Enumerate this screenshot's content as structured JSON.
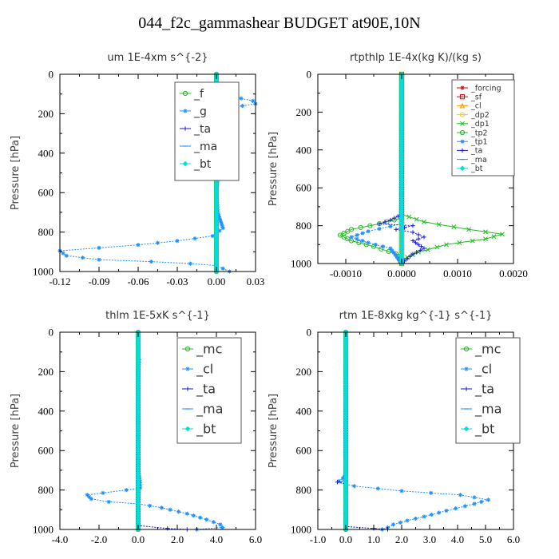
{
  "figure_title": "044_f2c_gammashear  BUDGET at90E,10N",
  "colors": {
    "green": "#22bb22",
    "red": "#dd0000",
    "orange": "#ff9900",
    "yellow": "#ffcc00",
    "blue": "#1a1add",
    "dodger": "#1e90ff",
    "cyan": "#00dddd",
    "purple": "#7a00cc",
    "dkgreen": "#00aa00"
  },
  "chart_data": [
    {
      "type": "line",
      "title": "um  1E-4xm s^{-2}",
      "ylabel": "Pressure [hPa]",
      "xlim": [
        -0.12,
        0.03
      ],
      "ylim": [
        1000,
        0
      ],
      "xticks": [
        "-0.12",
        "-0.09",
        "-0.06",
        "-0.03",
        "0.00",
        "0.03"
      ],
      "yticks": [
        "0",
        "200",
        "400",
        "600",
        "800",
        "1000"
      ],
      "legend": "top-right",
      "series": [
        {
          "name": "_f",
          "color": "#22bb22",
          "marker": "circle",
          "points": [
            [
              0,
              0
            ],
            [
              0,
              1000
            ]
          ]
        },
        {
          "name": "_g",
          "color": "#1e90ff",
          "marker": "star",
          "points": [
            [
              0,
              0
            ],
            [
              0,
              100
            ],
            [
              0.01,
              110
            ],
            [
              0.028,
              135
            ],
            [
              0.03,
              150
            ],
            [
              0.02,
              160
            ],
            [
              0.005,
              175
            ],
            [
              -0.005,
              190
            ],
            [
              0,
              200
            ],
            [
              -0.008,
              215
            ],
            [
              0,
              230
            ],
            [
              0.003,
              300
            ],
            [
              0,
              400
            ],
            [
              0.002,
              450
            ],
            [
              0,
              600
            ],
            [
              0.001,
              700
            ],
            [
              0.005,
              780
            ],
            [
              -0.003,
              820
            ],
            [
              -0.03,
              845
            ],
            [
              -0.06,
              865
            ],
            [
              -0.09,
              880
            ],
            [
              -0.12,
              895
            ],
            [
              -0.115,
              920
            ],
            [
              -0.09,
              940
            ],
            [
              -0.05,
              950
            ],
            [
              -0.02,
              960
            ],
            [
              0,
              970
            ],
            [
              0.005,
              985
            ],
            [
              0.01,
              1000
            ]
          ]
        },
        {
          "name": "_ta",
          "color": "#1a1add",
          "marker": "plus",
          "points": [
            [
              0,
              0
            ],
            [
              0,
              130
            ],
            [
              -0.01,
              180
            ],
            [
              0,
              200
            ],
            [
              -0.004,
              260
            ],
            [
              0,
              300
            ],
            [
              0,
              1000
            ]
          ]
        },
        {
          "name": "_ma",
          "color": "#1e90ff",
          "marker": "dash",
          "points": [
            [
              0,
              0
            ],
            [
              0,
              1000
            ]
          ]
        },
        {
          "name": "_bt",
          "color": "#00dddd",
          "marker": "diamond",
          "points": [
            [
              0,
              0
            ],
            [
              0,
              1000
            ]
          ]
        }
      ]
    },
    {
      "type": "line",
      "title": "rtpthlp  1E-4x(kg K)/(kg s)",
      "ylabel": "Pressure [hPa]",
      "xlim": [
        -0.0015,
        0.002
      ],
      "ylim": [
        1000,
        0
      ],
      "xticks": [
        "-0.0010",
        "0.0000",
        "0.0010",
        "0.0020"
      ],
      "yticks": [
        "0",
        "200",
        "400",
        "600",
        "800",
        "1000"
      ],
      "legend": "top-right",
      "series": [
        {
          "name": "_forcing",
          "color": "#dd0000",
          "marker": "star",
          "points": [
            [
              0,
              0
            ],
            [
              0,
              1000
            ]
          ]
        },
        {
          "name": "_sf",
          "color": "#dd0000",
          "marker": "square",
          "points": [
            [
              0,
              0
            ],
            [
              0,
              1000
            ]
          ]
        },
        {
          "name": "_cl",
          "color": "#ff9900",
          "marker": "triangle",
          "points": [
            [
              0,
              0
            ],
            [
              0,
              1000
            ]
          ]
        },
        {
          "name": "_dp2",
          "color": "#ffcc00",
          "marker": "circle",
          "points": [
            [
              0,
              0
            ],
            [
              0,
              1000
            ]
          ]
        },
        {
          "name": "_dp1",
          "color": "#22bb22",
          "marker": "cross",
          "points": [
            [
              0,
              0
            ],
            [
              0,
              740
            ],
            [
              0.0004,
              780
            ],
            [
              0.0012,
              820
            ],
            [
              0.0018,
              845
            ],
            [
              0.0015,
              870
            ],
            [
              0.0008,
              900
            ],
            [
              0.0003,
              940
            ],
            [
              0,
              980
            ],
            [
              0,
              1000
            ]
          ]
        },
        {
          "name": "_tp2",
          "color": "#22bb22",
          "marker": "circle",
          "points": [
            [
              0,
              0
            ],
            [
              0,
              760
            ],
            [
              -0.0004,
              790
            ],
            [
              -0.0009,
              820
            ],
            [
              -0.0011,
              850
            ],
            [
              -0.0009,
              880
            ],
            [
              -0.0005,
              910
            ],
            [
              -0.0001,
              950
            ],
            [
              0,
              1000
            ]
          ]
        },
        {
          "name": "_tp1",
          "color": "#1e90ff",
          "marker": "star",
          "points": [
            [
              0,
              0
            ],
            [
              0,
              790
            ],
            [
              -0.0006,
              830
            ],
            [
              -0.0009,
              860
            ],
            [
              -0.0006,
              890
            ],
            [
              -0.0002,
              920
            ],
            [
              0,
              1000
            ]
          ]
        },
        {
          "name": "_ta",
          "color": "#1a1add",
          "marker": "plus",
          "points": [
            [
              0,
              0
            ],
            [
              0,
              740
            ],
            [
              -0.0002,
              770
            ],
            [
              -0.0004,
              790
            ],
            [
              0.0002,
              800
            ],
            [
              -0.0001,
              820
            ],
            [
              0.0002,
              835
            ],
            [
              0.0004,
              860
            ],
            [
              0.0002,
              880
            ],
            [
              0.0003,
              900
            ],
            [
              0.0004,
              920
            ],
            [
              0.0002,
              950
            ],
            [
              0,
              1000
            ]
          ]
        },
        {
          "name": "_ma",
          "color": "#1e90ff",
          "marker": "dash",
          "points": [
            [
              0,
              0
            ],
            [
              0,
              1000
            ]
          ]
        },
        {
          "name": "_bt",
          "color": "#00dddd",
          "marker": "diamond",
          "points": [
            [
              0,
              0
            ],
            [
              0,
              1000
            ]
          ]
        }
      ]
    },
    {
      "type": "line",
      "title": "thlm  1E-5xK s^{-1}",
      "ylabel": "Pressure [hPa]",
      "xlim": [
        -4,
        6
      ],
      "ylim": [
        1000,
        0
      ],
      "xticks": [
        "-4.0",
        "-2.0",
        "0.0",
        "2.0",
        "4.0",
        "6.0"
      ],
      "yticks": [
        "0",
        "200",
        "400",
        "600",
        "800",
        "1000"
      ],
      "legend": "top-right",
      "series": [
        {
          "name": "_mc",
          "color": "#22bb22",
          "marker": "circle",
          "points": [
            [
              0,
              0
            ],
            [
              0,
              1000
            ]
          ]
        },
        {
          "name": "_cl",
          "color": "#1e90ff",
          "marker": "star",
          "points": [
            [
              0,
              0
            ],
            [
              0,
              130
            ],
            [
              0.05,
              140
            ],
            [
              0,
              200
            ],
            [
              0,
              700
            ],
            [
              0.08,
              750
            ],
            [
              0.1,
              790
            ],
            [
              -0.6,
              800
            ],
            [
              -1.8,
              815
            ],
            [
              -2.6,
              825
            ],
            [
              -2.4,
              845
            ],
            [
              -1.5,
              860
            ],
            [
              0,
              870
            ],
            [
              1.2,
              890
            ],
            [
              2.5,
              920
            ],
            [
              3.5,
              950
            ],
            [
              4.2,
              975
            ],
            [
              4.3,
              990
            ],
            [
              3.0,
              1000
            ]
          ]
        },
        {
          "name": "_ta",
          "color": "#1a1add",
          "marker": "plus",
          "points": [
            [
              0,
              0
            ],
            [
              0,
              980
            ],
            [
              1.5,
              995
            ],
            [
              2.5,
              1000
            ]
          ]
        },
        {
          "name": "_ma",
          "color": "#1e90ff",
          "marker": "dash",
          "points": [
            [
              0,
              0
            ],
            [
              0,
              1000
            ]
          ]
        },
        {
          "name": "_bt",
          "color": "#00dddd",
          "marker": "diamond",
          "points": [
            [
              0,
              0
            ],
            [
              0,
              1000
            ]
          ]
        }
      ]
    },
    {
      "type": "line",
      "title": "rtm  1E-8xkg kg^{-1} s^{-1}",
      "ylabel": "Pressure [hPa]",
      "xlim": [
        -1,
        6
      ],
      "ylim": [
        1000,
        0
      ],
      "xticks": [
        "-1.0",
        "0.0",
        "1.0",
        "2.0",
        "3.0",
        "4.0",
        "5.0",
        "6.0"
      ],
      "yticks": [
        "0",
        "200",
        "400",
        "600",
        "800",
        "1000"
      ],
      "legend": "top-right",
      "series": [
        {
          "name": "_mc",
          "color": "#22bb22",
          "marker": "circle",
          "points": [
            [
              0,
              0
            ],
            [
              0,
              1000
            ]
          ]
        },
        {
          "name": "_cl",
          "color": "#1e90ff",
          "marker": "star",
          "points": [
            [
              0,
              0
            ],
            [
              0,
              720
            ],
            [
              -0.1,
              740
            ],
            [
              -0.25,
              755
            ],
            [
              0,
              770
            ],
            [
              0.3,
              780
            ],
            [
              2.0,
              805
            ],
            [
              4.1,
              825
            ],
            [
              5.1,
              850
            ],
            [
              4.6,
              870
            ],
            [
              3.6,
              905
            ],
            [
              2.8,
              935
            ],
            [
              2.2,
              955
            ],
            [
              1.7,
              975
            ],
            [
              1.5,
              990
            ],
            [
              1.3,
              1000
            ]
          ]
        },
        {
          "name": "_ta",
          "color": "#1a1add",
          "marker": "plus",
          "points": [
            [
              0,
              0
            ],
            [
              0,
              750
            ],
            [
              -0.3,
              760
            ],
            [
              0,
              770
            ],
            [
              0,
              985
            ],
            [
              1.0,
              995
            ],
            [
              1.5,
              1000
            ]
          ]
        },
        {
          "name": "_ma",
          "color": "#1e90ff",
          "marker": "dash",
          "points": [
            [
              0,
              0
            ],
            [
              0,
              1000
            ]
          ]
        },
        {
          "name": "_bt",
          "color": "#00dddd",
          "marker": "diamond",
          "points": [
            [
              0,
              0
            ],
            [
              0,
              1000
            ]
          ]
        }
      ]
    }
  ]
}
